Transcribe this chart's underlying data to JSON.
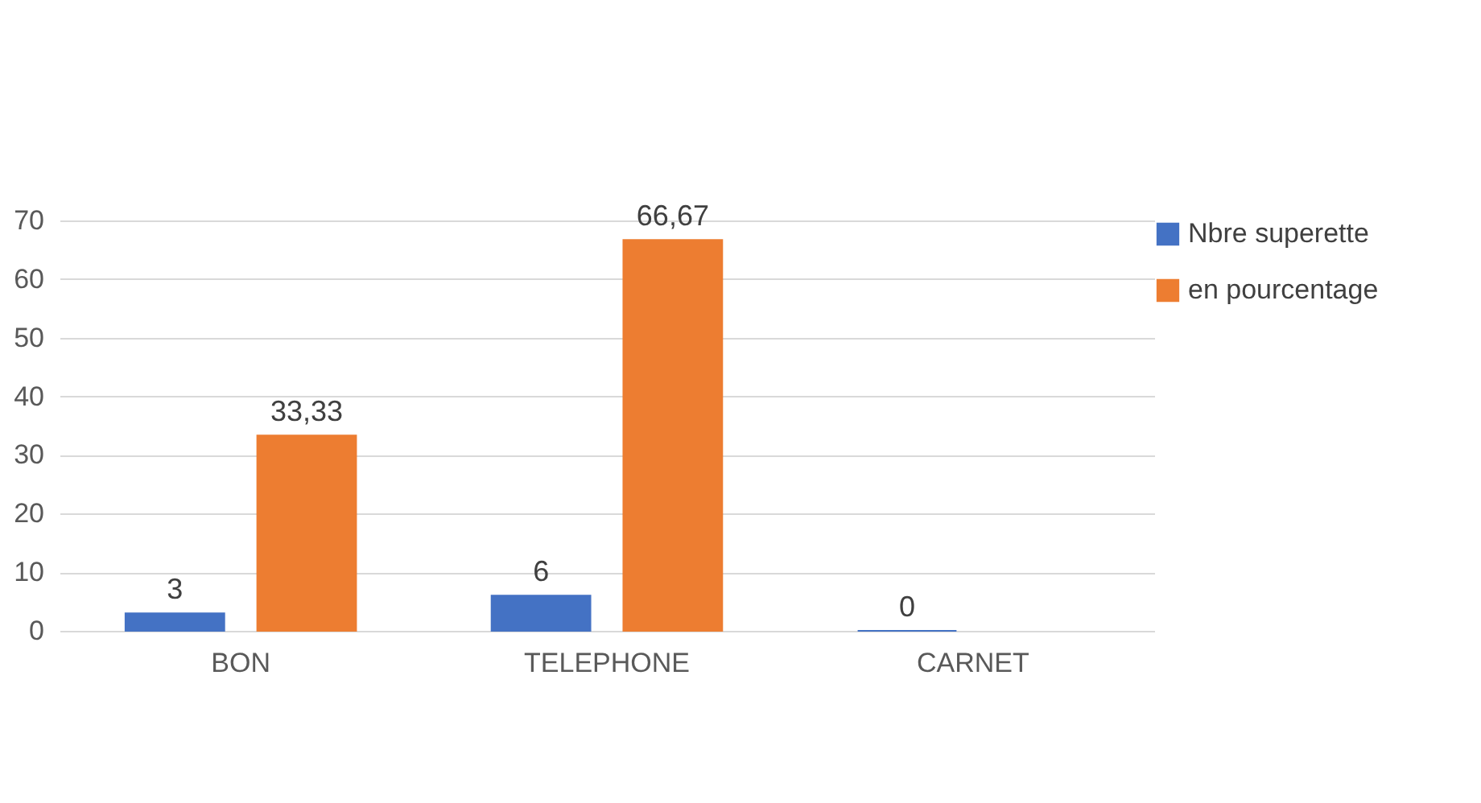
{
  "chart_data": {
    "type": "bar",
    "categories": [
      "BON",
      "TELEPHONE",
      "CARNET"
    ],
    "series": [
      {
        "name": "Nbre superette",
        "color": "#4472c4",
        "values": [
          3,
          6,
          0
        ],
        "value_labels": [
          "3",
          "6",
          "0"
        ]
      },
      {
        "name": "en pourcentage",
        "color": "#ed7d31",
        "values": [
          33.33,
          66.67,
          null
        ],
        "value_labels": [
          "33,33",
          "66,67",
          null
        ]
      }
    ],
    "ylim": [
      0,
      70
    ],
    "yticks": [
      0,
      10,
      20,
      30,
      40,
      50,
      60,
      70
    ],
    "grid": "y",
    "legend": "right"
  }
}
